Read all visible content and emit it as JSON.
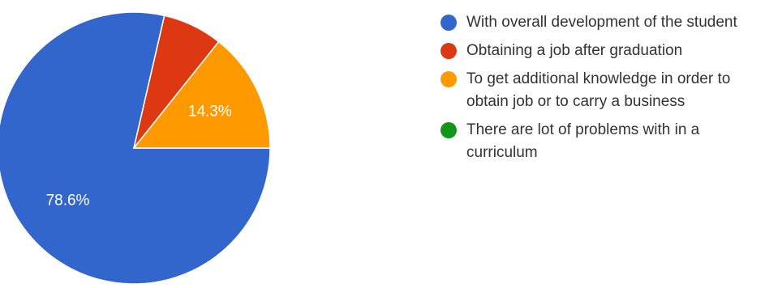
{
  "chart_data": {
    "type": "pie",
    "title": "",
    "slices": [
      {
        "label": "With overall development of the student",
        "value": 78.6,
        "color": "#3366cc",
        "data_label": "78.6%"
      },
      {
        "label": "Obtaining a job after graduation",
        "value": 7.1,
        "color": "#dc3912",
        "data_label": ""
      },
      {
        "label": "To get additional knowledge in order to obtain job or to carry a business",
        "value": 14.3,
        "color": "#ff9900",
        "data_label": "14.3%"
      },
      {
        "label": "There are lot of problems with in a curriculum",
        "value": 0,
        "color": "#109618",
        "data_label": ""
      }
    ],
    "legend_position": "right"
  }
}
